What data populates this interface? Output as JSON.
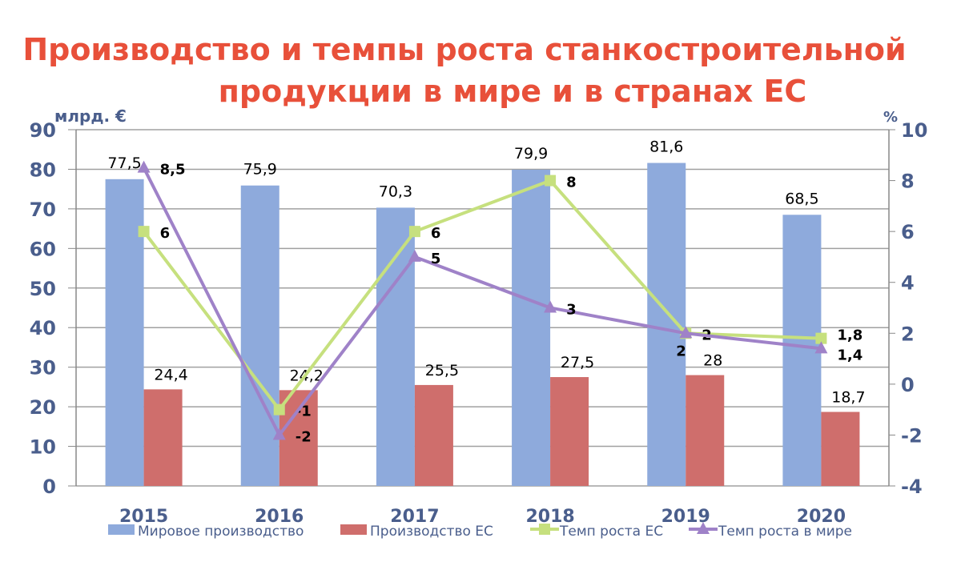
{
  "chart_data": {
    "type": "bar+line",
    "title_line1": "Производство и темпы роста станкостроительной",
    "title_line2": "продукции в мире и в странах ЕС",
    "ylabel_left": "млрд. €",
    "ylabel_right": "%",
    "ylim_left": [
      0,
      90
    ],
    "ylim_right": [
      -4,
      10
    ],
    "yticks_left": [
      0,
      10,
      20,
      30,
      40,
      50,
      60,
      70,
      80,
      90
    ],
    "yticks_right": [
      -4,
      -2,
      0,
      2,
      4,
      6,
      8,
      10
    ],
    "grid": true,
    "legend_placement": "bottom",
    "categories": [
      "2015",
      "2016",
      "2017",
      "2018",
      "2019",
      "2020"
    ],
    "series": [
      {
        "name": "Мировое производство",
        "type": "bar",
        "axis": "left",
        "color": "#8eaadc",
        "values": [
          77.5,
          75.9,
          70.3,
          79.9,
          81.6,
          68.5
        ],
        "labels": [
          "77,5",
          "75,9",
          "70,3",
          "79,9",
          "81,6",
          "68,5"
        ]
      },
      {
        "name": "Производство ЕС",
        "type": "bar",
        "axis": "left",
        "color": "#cf6e6c",
        "values": [
          24.4,
          24.2,
          25.5,
          27.5,
          28,
          18.7
        ],
        "labels": [
          "24,4",
          "24,2",
          "25,5",
          "27,5",
          "28",
          "18,7"
        ]
      },
      {
        "name": "Темп роста ЕС",
        "type": "line",
        "axis": "right",
        "color": "#c6e07e",
        "marker": "square",
        "values": [
          6,
          -1,
          6,
          8,
          2,
          1.8
        ],
        "labels": [
          "6",
          "-1",
          "6",
          "8",
          "2",
          "1,8"
        ]
      },
      {
        "name": "Темп роста  в мире",
        "type": "line",
        "axis": "right",
        "color": "#9f82c8",
        "marker": "triangle",
        "values": [
          8.5,
          -2,
          5,
          3,
          2,
          1.4
        ],
        "labels": [
          "8,5",
          "-2",
          "5",
          "3",
          "2",
          "1,4"
        ]
      }
    ]
  }
}
